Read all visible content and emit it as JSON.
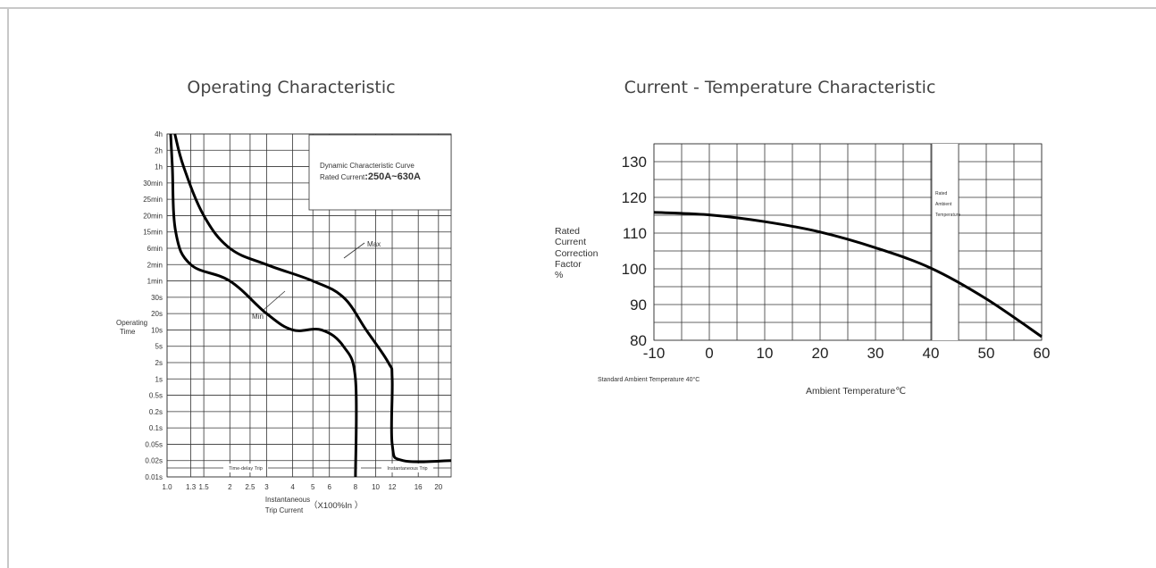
{
  "chart_data": [
    {
      "type": "line",
      "title": "Operating Characteristic",
      "xlabel_line1": "Instantaneous",
      "xlabel_line2": "Trip Current",
      "xlabel_unit": "（X100%In ）",
      "ylabel_line1": "Operating",
      "ylabel_line2": "Time",
      "x_scale": "log",
      "xlim": [
        1.0,
        23
      ],
      "x_ticks": [
        "1.0",
        "1.3",
        "1.5",
        "2",
        "2.5",
        "3",
        "4",
        "5",
        "6",
        "8",
        "10",
        "12",
        "16",
        "20"
      ],
      "y_ticks": [
        "4h",
        "2h",
        "1h",
        "30min",
        "25min",
        "20min",
        "15min",
        "6min",
        "2min",
        "1min",
        "30s",
        "20s",
        "10s",
        "5s",
        "2s",
        "1s",
        "0.5s",
        "0.2s",
        "0.1s",
        "0.05s",
        "0.02s",
        "0.01s"
      ],
      "grid": true,
      "legend_box": {
        "line1": "Dynamic Characteristic Curve",
        "line2_prefix": "Rated Current",
        "line2_value": ":250A~630A"
      },
      "annotations": {
        "max": "Max",
        "min": "Min",
        "time_delay": "Time-delay Trip",
        "instantaneous": "Instantaneous Trip"
      },
      "series": [
        {
          "name": "Max",
          "points": [
            [
              1.09,
              "4h"
            ],
            [
              1.2,
              "1h"
            ],
            [
              1.5,
              "20min"
            ],
            [
              2,
              "6min"
            ],
            [
              3,
              "2min"
            ],
            [
              5,
              "1min"
            ],
            [
              7,
              "30s"
            ],
            [
              9,
              "10s"
            ],
            [
              11.5,
              "2s"
            ],
            [
              12,
              "1s"
            ],
            [
              12,
              "0.05s"
            ],
            [
              13.5,
              "0.02s"
            ],
            [
              23,
              "0.02s"
            ]
          ]
        },
        {
          "name": "Min",
          "points": [
            [
              1.04,
              "4h"
            ],
            [
              1.06,
              "1h"
            ],
            [
              1.1,
              "15min"
            ],
            [
              1.3,
              "2min"
            ],
            [
              2,
              "1min"
            ],
            [
              3,
              "20s"
            ],
            [
              4,
              "10s"
            ],
            [
              5.5,
              "10s"
            ],
            [
              7,
              "5s"
            ],
            [
              8,
              "1s"
            ],
            [
              8,
              "0.01s"
            ]
          ]
        }
      ]
    },
    {
      "type": "line",
      "title": "Current - Temperature Characteristic",
      "xlabel": "Ambient Temperature℃",
      "ylabel_lines": [
        "Rated",
        "Current",
        "Correction",
        "Factor",
        "%"
      ],
      "xlim": [
        -10,
        60
      ],
      "ylim": [
        80,
        135
      ],
      "x_ticks": [
        "-10",
        "0",
        "10",
        "20",
        "30",
        "40",
        "50",
        "60"
      ],
      "y_ticks": [
        "80",
        "90",
        "100",
        "110",
        "120",
        "130"
      ],
      "grid": true,
      "rated_label": [
        "Rated",
        "Ambient",
        "Temperature"
      ],
      "note": "Standard Ambient Temperature 40°C",
      "x": [
        -10,
        0,
        10,
        20,
        30,
        40,
        50,
        60
      ],
      "y": [
        115.8,
        115.1,
        113.2,
        110.3,
        105.9,
        100.2,
        91.6,
        81
      ]
    }
  ]
}
